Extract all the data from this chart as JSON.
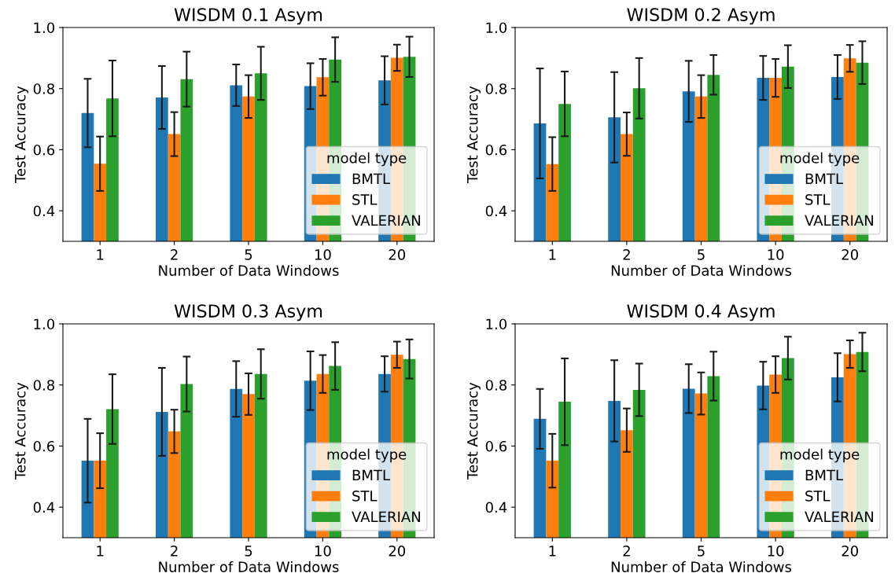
{
  "chart_data": [
    {
      "type": "bar",
      "title": "WISDM 0.1 Asym",
      "xlabel": "Number of Data Windows",
      "ylabel": "Test Accuracy",
      "legend_title": "model type",
      "legend": "lower right",
      "categories": [
        "1",
        "2",
        "5",
        "10",
        "20"
      ],
      "ylim": [
        0.3,
        1.0
      ],
      "yticks": [
        {
          "value": 0.4,
          "label": "0.4"
        },
        {
          "value": 0.6,
          "label": "0.6"
        },
        {
          "value": 0.8,
          "label": "0.8"
        },
        {
          "value": 1.0,
          "label": "1.0"
        }
      ],
      "grid": false,
      "series": [
        {
          "name": "BMTL",
          "color": "#1f77b4",
          "values": [
            0.72,
            0.771,
            0.811,
            0.808,
            0.827
          ],
          "errors": [
            0.112,
            0.103,
            0.068,
            0.075,
            0.079
          ]
        },
        {
          "name": "STL",
          "color": "#ff7f0e",
          "values": [
            0.554,
            0.651,
            0.774,
            0.837,
            0.901
          ],
          "errors": [
            0.089,
            0.072,
            0.07,
            0.06,
            0.043
          ]
        },
        {
          "name": "VALERIAN",
          "color": "#2ca02c",
          "values": [
            0.768,
            0.831,
            0.85,
            0.895,
            0.904
          ],
          "errors": [
            0.124,
            0.09,
            0.087,
            0.073,
            0.066
          ]
        }
      ]
    },
    {
      "type": "bar",
      "title": "WISDM 0.2 Asym",
      "xlabel": "Number of Data Windows",
      "ylabel": "Test Accuracy",
      "legend_title": "model type",
      "legend": "lower right",
      "categories": [
        "1",
        "2",
        "5",
        "10",
        "20"
      ],
      "ylim": [
        0.3,
        1.0
      ],
      "yticks": [
        {
          "value": 0.4,
          "label": "0.4"
        },
        {
          "value": 0.6,
          "label": "0.6"
        },
        {
          "value": 0.8,
          "label": "0.8"
        },
        {
          "value": 1.0,
          "label": "1.0"
        }
      ],
      "grid": false,
      "series": [
        {
          "name": "BMTL",
          "color": "#1f77b4",
          "values": [
            0.686,
            0.706,
            0.791,
            0.835,
            0.838
          ],
          "errors": [
            0.18,
            0.148,
            0.1,
            0.072,
            0.072
          ]
        },
        {
          "name": "STL",
          "color": "#ff7f0e",
          "values": [
            0.553,
            0.651,
            0.774,
            0.835,
            0.899
          ],
          "errors": [
            0.088,
            0.071,
            0.07,
            0.062,
            0.044
          ]
        },
        {
          "name": "VALERIAN",
          "color": "#2ca02c",
          "values": [
            0.75,
            0.801,
            0.845,
            0.872,
            0.885
          ],
          "errors": [
            0.106,
            0.099,
            0.065,
            0.07,
            0.07
          ]
        }
      ]
    },
    {
      "type": "bar",
      "title": "WISDM 0.3 Asym",
      "xlabel": "Number of Data Windows",
      "ylabel": "Test Accuracy",
      "legend_title": "model type",
      "legend": "lower right",
      "categories": [
        "1",
        "2",
        "5",
        "10",
        "20"
      ],
      "ylim": [
        0.3,
        1.0
      ],
      "yticks": [
        {
          "value": 0.4,
          "label": "0.4"
        },
        {
          "value": 0.6,
          "label": "0.6"
        },
        {
          "value": 0.8,
          "label": "0.8"
        },
        {
          "value": 1.0,
          "label": "1.0"
        }
      ],
      "grid": false,
      "series": [
        {
          "name": "BMTL",
          "color": "#1f77b4",
          "values": [
            0.552,
            0.712,
            0.787,
            0.814,
            0.836
          ],
          "errors": [
            0.137,
            0.144,
            0.091,
            0.096,
            0.058
          ]
        },
        {
          "name": "STL",
          "color": "#ff7f0e",
          "values": [
            0.552,
            0.648,
            0.77,
            0.836,
            0.899
          ],
          "errors": [
            0.09,
            0.071,
            0.068,
            0.062,
            0.043
          ]
        },
        {
          "name": "VALERIAN",
          "color": "#2ca02c",
          "values": [
            0.721,
            0.803,
            0.836,
            0.862,
            0.885
          ],
          "errors": [
            0.114,
            0.09,
            0.081,
            0.078,
            0.064
          ]
        }
      ]
    },
    {
      "type": "bar",
      "title": "WISDM 0.4 Asym",
      "xlabel": "Number of Data Windows",
      "ylabel": "Test Accuracy",
      "legend_title": "model type",
      "legend": "lower right",
      "categories": [
        "1",
        "2",
        "5",
        "10",
        "20"
      ],
      "ylim": [
        0.3,
        1.0
      ],
      "yticks": [
        {
          "value": 0.4,
          "label": "0.4"
        },
        {
          "value": 0.6,
          "label": "0.6"
        },
        {
          "value": 0.8,
          "label": "0.8"
        },
        {
          "value": 1.0,
          "label": "1.0"
        }
      ],
      "grid": false,
      "series": [
        {
          "name": "BMTL",
          "color": "#1f77b4",
          "values": [
            0.689,
            0.748,
            0.788,
            0.798,
            0.825
          ],
          "errors": [
            0.098,
            0.133,
            0.08,
            0.078,
            0.079
          ]
        },
        {
          "name": "STL",
          "color": "#ff7f0e",
          "values": [
            0.552,
            0.652,
            0.772,
            0.834,
            0.901
          ],
          "errors": [
            0.088,
            0.071,
            0.069,
            0.06,
            0.045
          ]
        },
        {
          "name": "VALERIAN",
          "color": "#2ca02c",
          "values": [
            0.745,
            0.784,
            0.829,
            0.888,
            0.908
          ],
          "errors": [
            0.142,
            0.086,
            0.08,
            0.07,
            0.063
          ]
        }
      ]
    }
  ]
}
